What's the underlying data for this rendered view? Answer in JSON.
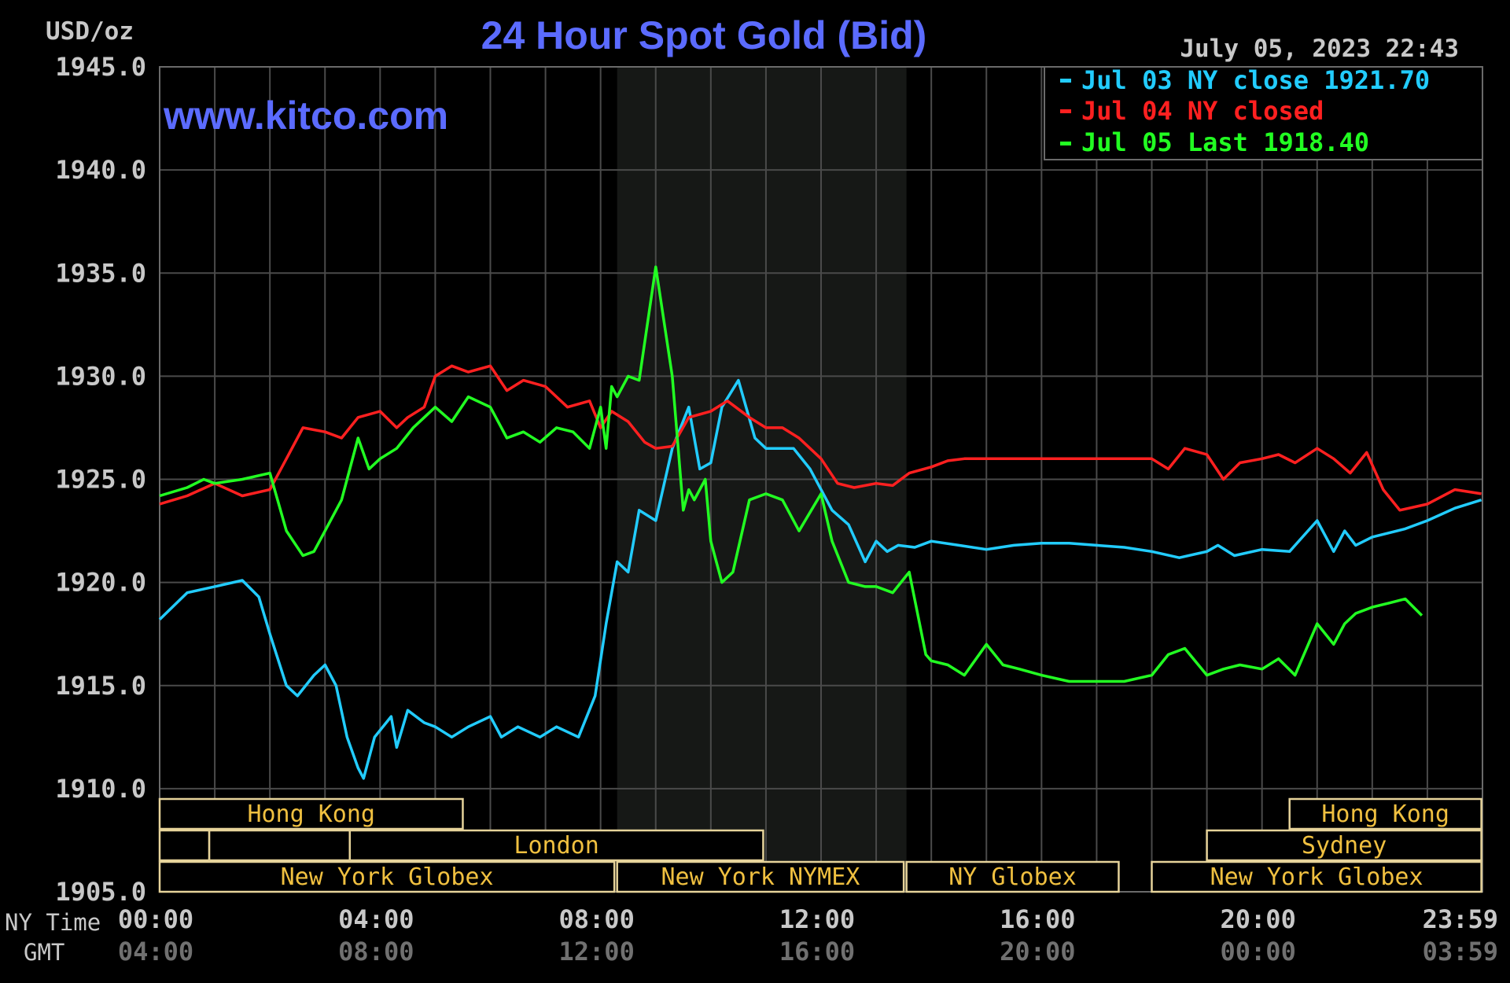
{
  "header": {
    "unit_label": "USD/oz",
    "title": "24 Hour Spot Gold (Bid)",
    "timestamp": "July 05, 2023 22:43",
    "watermark": "www.kitco.com"
  },
  "legend": [
    {
      "text": "Jul 03 NY close 1921.70",
      "color": "#22ccff"
    },
    {
      "text": "Jul 04 NY closed",
      "color": "#ff2020"
    },
    {
      "text": "Jul 05 Last 1918.40",
      "color": "#22ff22"
    }
  ],
  "axis_labels": {
    "ny_time": "NY Time",
    "gmt": "GMT"
  },
  "sessions": [
    {
      "label": "Hong Kong",
      "row": 0,
      "start": 0,
      "end": 5.5
    },
    {
      "label": "",
      "row": 1,
      "start": 0,
      "end": 0.9
    },
    {
      "label": "",
      "row": 1,
      "start": 0.9,
      "end": 3.45
    },
    {
      "label": "London",
      "row": 1,
      "start": 3.45,
      "end": 10.95
    },
    {
      "label": "New York Globex",
      "row": 2,
      "start": 0,
      "end": 8.25
    },
    {
      "label": "New York NYMEX",
      "row": 2,
      "start": 8.3,
      "end": 13.5
    },
    {
      "label": "NY Globex",
      "row": 2,
      "start": 13.55,
      "end": 17.4
    },
    {
      "label": "Hong Kong",
      "row": 0,
      "start": 20.5,
      "end": 23.98
    },
    {
      "label": "Sydney",
      "row": 1,
      "start": 19.0,
      "end": 23.98
    },
    {
      "label": "New York Globex",
      "row": 2,
      "start": 18.0,
      "end": 23.98
    }
  ],
  "chart_data": {
    "type": "line",
    "title": "24 Hour Spot Gold (Bid)",
    "ylabel": "USD/oz",
    "ylim": [
      1905,
      1945
    ],
    "xlim": [
      0,
      24
    ],
    "yticks": [
      "1945.0",
      "1940.0",
      "1935.0",
      "1930.0",
      "1925.0",
      "1920.0",
      "1915.0",
      "1910.0",
      "1905.0"
    ],
    "xticks_ny": [
      "00:00",
      "04:00",
      "08:00",
      "12:00",
      "16:00",
      "20:00",
      "23:59"
    ],
    "xticks_gmt": [
      "04:00",
      "08:00",
      "12:00",
      "16:00",
      "20:00",
      "00:00",
      "03:59"
    ],
    "nymex_shade_hours": [
      8.3,
      13.55
    ],
    "series": [
      {
        "name": "Jul 03 NY close 1921.70",
        "color": "#22ccff",
        "x": [
          0,
          0.5,
          1,
          1.5,
          1.8,
          2,
          2.3,
          2.5,
          2.8,
          3,
          3.2,
          3.4,
          3.6,
          3.7,
          3.9,
          4.2,
          4.3,
          4.5,
          4.8,
          5.0,
          5.3,
          5.6,
          6.0,
          6.2,
          6.5,
          6.9,
          7.2,
          7.6,
          7.9,
          8.1,
          8.3,
          8.5,
          8.7,
          9.0,
          9.3,
          9.6,
          9.8,
          10.0,
          10.2,
          10.5,
          10.8,
          11.0,
          11.2,
          11.5,
          11.8,
          12.0,
          12.2,
          12.5,
          12.8,
          13.0,
          13.2,
          13.4,
          13.7,
          14.0,
          14.5,
          15.0,
          15.5,
          16.0,
          16.5,
          17.0,
          17.5,
          18.0,
          18.5,
          19.0,
          19.2,
          19.5,
          20.0,
          20.5,
          21.0,
          21.3,
          21.5,
          21.7,
          22.0,
          22.3,
          22.6,
          23.0,
          23.5,
          23.98
        ],
        "y": [
          1918.2,
          1919.5,
          1919.8,
          1920.1,
          1919.3,
          1917.5,
          1915.0,
          1914.5,
          1915.5,
          1916.0,
          1915.0,
          1912.5,
          1911.0,
          1910.5,
          1912.5,
          1913.5,
          1912.0,
          1913.8,
          1913.2,
          1913.0,
          1912.5,
          1913.0,
          1913.5,
          1912.5,
          1913.0,
          1912.5,
          1913.0,
          1912.5,
          1914.5,
          1918.0,
          1921.0,
          1920.5,
          1923.5,
          1923.0,
          1926.5,
          1928.5,
          1925.5,
          1925.8,
          1928.5,
          1929.8,
          1927.0,
          1926.5,
          1926.5,
          1926.5,
          1925.5,
          1924.5,
          1923.5,
          1922.8,
          1921.0,
          1922.0,
          1921.5,
          1921.8,
          1921.7,
          1922.0,
          1921.8,
          1921.6,
          1921.8,
          1921.9,
          1921.9,
          1921.8,
          1921.7,
          1921.5,
          1921.2,
          1921.5,
          1921.8,
          1921.3,
          1921.6,
          1921.5,
          1923.0,
          1921.5,
          1922.5,
          1921.8,
          1922.2,
          1922.4,
          1922.6,
          1923.0,
          1923.6,
          1924.0
        ]
      },
      {
        "name": "Jul 04 NY closed",
        "color": "#ff2020",
        "x": [
          0,
          0.5,
          1,
          1.5,
          2,
          2.3,
          2.6,
          3,
          3.3,
          3.6,
          4.0,
          4.3,
          4.5,
          4.8,
          5.0,
          5.3,
          5.6,
          6.0,
          6.3,
          6.6,
          7.0,
          7.4,
          7.8,
          8.0,
          8.2,
          8.5,
          8.8,
          9.0,
          9.3,
          9.6,
          10.0,
          10.3,
          10.7,
          11.0,
          11.3,
          11.6,
          12.0,
          12.3,
          12.6,
          13.0,
          13.3,
          13.6,
          14.0,
          14.3,
          14.6,
          15,
          16,
          17,
          18,
          18.3,
          18.6,
          19.0,
          19.3,
          19.6,
          20.0,
          20.3,
          20.6,
          21.0,
          21.3,
          21.6,
          21.9,
          22.2,
          22.5,
          23.0,
          23.5,
          23.98
        ],
        "y": [
          1923.8,
          1924.2,
          1924.8,
          1924.2,
          1924.5,
          1926.0,
          1927.5,
          1927.3,
          1927.0,
          1928.0,
          1928.3,
          1927.5,
          1928.0,
          1928.5,
          1930.0,
          1930.5,
          1930.2,
          1930.5,
          1929.3,
          1929.8,
          1929.5,
          1928.5,
          1928.8,
          1927.5,
          1928.3,
          1927.8,
          1926.8,
          1926.5,
          1926.6,
          1928.0,
          1928.3,
          1928.8,
          1928.0,
          1927.5,
          1927.5,
          1927.0,
          1926.0,
          1924.8,
          1924.6,
          1924.8,
          1924.7,
          1925.3,
          1925.6,
          1925.9,
          1926.0,
          1926.0,
          1926.0,
          1926.0,
          1926.0,
          1925.5,
          1926.5,
          1926.2,
          1925.0,
          1925.8,
          1926.0,
          1926.2,
          1925.8,
          1926.5,
          1926.0,
          1925.3,
          1926.3,
          1924.5,
          1923.5,
          1923.8,
          1924.5,
          1924.3
        ]
      },
      {
        "name": "Jul 05 Last 1918.40",
        "color": "#22ff22",
        "x": [
          0,
          0.5,
          0.8,
          1,
          1.5,
          2,
          2.3,
          2.6,
          2.8,
          3,
          3.3,
          3.6,
          3.8,
          4.0,
          4.3,
          4.6,
          4.8,
          5.0,
          5.3,
          5.6,
          6.0,
          6.3,
          6.6,
          6.9,
          7.2,
          7.5,
          7.8,
          8.0,
          8.1,
          8.2,
          8.3,
          8.5,
          8.7,
          9.0,
          9.3,
          9.5,
          9.6,
          9.7,
          9.9,
          10.0,
          10.2,
          10.4,
          10.7,
          11.0,
          11.3,
          11.6,
          12.0,
          12.2,
          12.5,
          12.8,
          13.0,
          13.3,
          13.6,
          13.9,
          14.0,
          14.3,
          14.6,
          15.0,
          15.3,
          15.6,
          16.0,
          16.5,
          17.0,
          17.5,
          18.0,
          18.3,
          18.6,
          19.0,
          19.3,
          19.6,
          20.0,
          20.3,
          20.6,
          21.0,
          21.3,
          21.5,
          21.7,
          22.0,
          22.3,
          22.6,
          22.9
        ],
        "y": [
          1924.2,
          1924.6,
          1925.0,
          1924.8,
          1925.0,
          1925.3,
          1922.5,
          1921.3,
          1921.5,
          1922.5,
          1924.0,
          1927.0,
          1925.5,
          1926.0,
          1926.5,
          1927.5,
          1928.0,
          1928.5,
          1927.8,
          1929.0,
          1928.5,
          1927.0,
          1927.3,
          1926.8,
          1927.5,
          1927.3,
          1926.5,
          1928.5,
          1926.5,
          1929.5,
          1929.0,
          1930.0,
          1929.8,
          1935.3,
          1930.0,
          1923.5,
          1924.5,
          1924.0,
          1925.0,
          1922.0,
          1920.0,
          1920.5,
          1924.0,
          1924.3,
          1924.0,
          1922.5,
          1924.3,
          1922.0,
          1920.0,
          1919.8,
          1919.8,
          1919.5,
          1920.5,
          1916.5,
          1916.2,
          1916.0,
          1915.5,
          1917.0,
          1916.0,
          1915.8,
          1915.5,
          1915.2,
          1915.2,
          1915.2,
          1915.5,
          1916.5,
          1916.8,
          1915.5,
          1915.8,
          1916.0,
          1915.8,
          1916.3,
          1915.5,
          1918.0,
          1917.0,
          1918.0,
          1918.5,
          1918.8,
          1919.0,
          1919.2,
          1918.4
        ]
      }
    ]
  }
}
